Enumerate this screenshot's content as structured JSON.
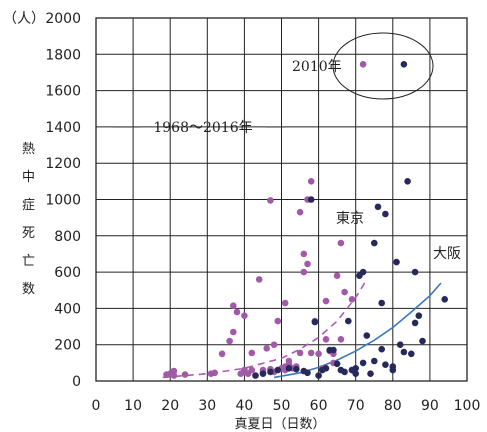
{
  "chart_data": {
    "type": "scatter",
    "title": "",
    "xlabel": "真夏日（日数）",
    "ylabel": "熱中症死亡数",
    "yunit": "（人）",
    "xlim": [
      0,
      100
    ],
    "ylim": [
      0,
      2000
    ],
    "x_ticks": [
      "0",
      "10",
      "20",
      "30",
      "40",
      "50",
      "60",
      "70",
      "80",
      "90",
      "100"
    ],
    "y_ticks": [
      "0",
      "200",
      "400",
      "600",
      "800",
      "1000",
      "1200",
      "1400",
      "1600",
      "1800",
      "2000"
    ],
    "grid": true,
    "annotations": {
      "period": "1968～2016年",
      "highlight": "2010年"
    },
    "series": [
      {
        "name": "東京",
        "color": "#a05aa8",
        "trend_color": "#b058b8",
        "points": [
          [
            19,
            35
          ],
          [
            20,
            40
          ],
          [
            21,
            55
          ],
          [
            21,
            30
          ],
          [
            24,
            35
          ],
          [
            31,
            40
          ],
          [
            32,
            45
          ],
          [
            34,
            150
          ],
          [
            36,
            220
          ],
          [
            37,
            270
          ],
          [
            37,
            415
          ],
          [
            38,
            380
          ],
          [
            39,
            40
          ],
          [
            40,
            50
          ],
          [
            40,
            60
          ],
          [
            40,
            360
          ],
          [
            41,
            40
          ],
          [
            42,
            60
          ],
          [
            42,
            155
          ],
          [
            44,
            560
          ],
          [
            45,
            60
          ],
          [
            45,
            45
          ],
          [
            46,
            180
          ],
          [
            47,
            995
          ],
          [
            47,
            65
          ],
          [
            48,
            200
          ],
          [
            48,
            50
          ],
          [
            49,
            330
          ],
          [
            50,
            70
          ],
          [
            51,
            80
          ],
          [
            51,
            430
          ],
          [
            51,
            60
          ],
          [
            52,
            90
          ],
          [
            52,
            110
          ],
          [
            53,
            70
          ],
          [
            54,
            80
          ],
          [
            55,
            930
          ],
          [
            55,
            155
          ],
          [
            56,
            700
          ],
          [
            56,
            600
          ],
          [
            57,
            645
          ],
          [
            57,
            1000
          ],
          [
            58,
            1100
          ],
          [
            58,
            155
          ],
          [
            59,
            330
          ],
          [
            60,
            150
          ],
          [
            61,
            70
          ],
          [
            62,
            440
          ],
          [
            62,
            230
          ],
          [
            63,
            165
          ],
          [
            64,
            100
          ],
          [
            64,
            150
          ],
          [
            65,
            580
          ],
          [
            66,
            760
          ],
          [
            66,
            230
          ],
          [
            67,
            490
          ],
          [
            69,
            450
          ],
          [
            69,
            60
          ],
          [
            72,
            1745
          ]
        ],
        "trend": [
          [
            18,
            20
          ],
          [
            30,
            40
          ],
          [
            40,
            70
          ],
          [
            50,
            125
          ],
          [
            55,
            175
          ],
          [
            60,
            240
          ],
          [
            65,
            330
          ],
          [
            70,
            460
          ],
          [
            73,
            560
          ]
        ]
      },
      {
        "name": "大阪",
        "color": "#262a5a",
        "trend_color": "#3a78bc",
        "points": [
          [
            43,
            30
          ],
          [
            45,
            40
          ],
          [
            47,
            50
          ],
          [
            49,
            60
          ],
          [
            52,
            70
          ],
          [
            54,
            65
          ],
          [
            56,
            55
          ],
          [
            57,
            45
          ],
          [
            58,
            1000
          ],
          [
            59,
            325
          ],
          [
            60,
            30
          ],
          [
            61,
            60
          ],
          [
            62,
            70
          ],
          [
            63,
            170
          ],
          [
            64,
            170
          ],
          [
            65,
            95
          ],
          [
            66,
            60
          ],
          [
            67,
            50
          ],
          [
            68,
            330
          ],
          [
            69,
            60
          ],
          [
            70,
            40
          ],
          [
            70,
            70
          ],
          [
            71,
            580
          ],
          [
            72,
            100
          ],
          [
            72,
            600
          ],
          [
            73,
            250
          ],
          [
            74,
            40
          ],
          [
            75,
            760
          ],
          [
            75,
            110
          ],
          [
            76,
            960
          ],
          [
            77,
            175
          ],
          [
            77,
            430
          ],
          [
            78,
            920
          ],
          [
            78,
            90
          ],
          [
            80,
            60
          ],
          [
            80,
            80
          ],
          [
            81,
            655
          ],
          [
            82,
            200
          ],
          [
            83,
            160
          ],
          [
            83,
            1745
          ],
          [
            84,
            1100
          ],
          [
            85,
            150
          ],
          [
            86,
            600
          ],
          [
            86,
            320
          ],
          [
            87,
            360
          ],
          [
            88,
            220
          ],
          [
            94,
            450
          ]
        ],
        "trend": [
          [
            48,
            20
          ],
          [
            55,
            45
          ],
          [
            60,
            75
          ],
          [
            65,
            115
          ],
          [
            70,
            165
          ],
          [
            75,
            225
          ],
          [
            80,
            295
          ],
          [
            85,
            380
          ],
          [
            90,
            470
          ],
          [
            93,
            540
          ]
        ]
      }
    ]
  }
}
